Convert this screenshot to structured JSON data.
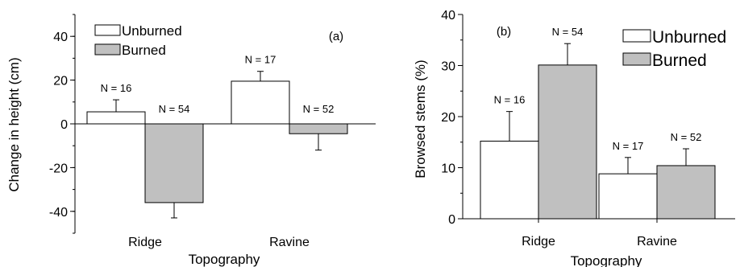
{
  "chart_data": [
    {
      "type": "bar",
      "panel_label": "(a)",
      "categories": [
        "Ridge",
        "Ravine"
      ],
      "xlabel": "Topography",
      "ylabel": "Change in height (cm)",
      "ylim": [
        -50,
        50
      ],
      "yticks": [
        -40,
        -20,
        0,
        20,
        40
      ],
      "yticklabels": [
        "-40",
        "-20",
        "0",
        "20",
        "40"
      ],
      "legend_position": "top-left",
      "series": [
        {
          "name": "Unburned",
          "color": "#ffffff",
          "values": [
            5.5,
            19.5
          ],
          "errors": [
            5.5,
            4.5
          ],
          "n_labels": [
            "N = 16",
            "N = 17"
          ]
        },
        {
          "name": "Burned",
          "color": "#c0c0c0",
          "values": [
            -36,
            -4.5
          ],
          "errors": [
            7,
            7.5
          ],
          "n_labels": [
            "N = 54",
            "N = 52"
          ]
        }
      ]
    },
    {
      "type": "bar",
      "panel_label": "(b)",
      "categories": [
        "Ridge",
        "Ravine"
      ],
      "xlabel": "Topography",
      "ylabel": "Browsed stems (%)",
      "ylim": [
        0,
        40
      ],
      "yticks": [
        0,
        10,
        20,
        30,
        40
      ],
      "yticklabels": [
        "0",
        "10",
        "20",
        "30",
        "40"
      ],
      "legend_position": "top-right",
      "series": [
        {
          "name": "Unburned",
          "color": "#ffffff",
          "values": [
            15.2,
            8.8
          ],
          "errors": [
            5.8,
            3.2
          ],
          "n_labels": [
            "N = 16",
            "N = 17"
          ]
        },
        {
          "name": "Burned",
          "color": "#c0c0c0",
          "values": [
            30.1,
            10.4
          ],
          "errors": [
            4.2,
            3.3
          ],
          "n_labels": [
            "N = 54",
            "N = 52"
          ]
        }
      ]
    }
  ]
}
